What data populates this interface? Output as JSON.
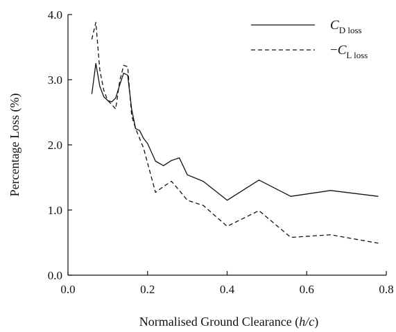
{
  "chart_data": {
    "type": "line",
    "xlabel": "Normalised Ground Clearance (h/c)",
    "xlabel_parts": {
      "pre": "Normalised Ground Clearance (",
      "var": "h/c",
      "post": ")"
    },
    "ylabel": "Percentage Loss (%)",
    "xlim": [
      0.0,
      0.8
    ],
    "ylim": [
      0.0,
      4.0
    ],
    "xticks": [
      0.0,
      0.2,
      0.4,
      0.6,
      0.8
    ],
    "xtick_labels": [
      "0.0",
      "0.2",
      "0.4",
      "0.6",
      "0.8"
    ],
    "yticks": [
      0.0,
      1.0,
      2.0,
      3.0,
      4.0
    ],
    "ytick_labels": [
      "0.0",
      "1.0",
      "2.0",
      "3.0",
      "4.0"
    ],
    "grid": false,
    "legend_position": "top-right",
    "series": [
      {
        "name": "C_D loss",
        "legend_main": "C",
        "legend_sub": "D loss",
        "legend_prefix": "",
        "style": "solid",
        "color": "#111111",
        "x": [
          0.06,
          0.07,
          0.08,
          0.09,
          0.1,
          0.11,
          0.12,
          0.13,
          0.14,
          0.15,
          0.16,
          0.17,
          0.18,
          0.19,
          0.2,
          0.22,
          0.24,
          0.26,
          0.28,
          0.3,
          0.34,
          0.4,
          0.48,
          0.56,
          0.66,
          0.78
        ],
        "y": [
          2.78,
          3.25,
          2.9,
          2.74,
          2.68,
          2.66,
          2.72,
          2.92,
          3.1,
          3.07,
          2.55,
          2.25,
          2.22,
          2.1,
          2.02,
          1.75,
          1.68,
          1.76,
          1.8,
          1.54,
          1.44,
          1.15,
          1.46,
          1.21,
          1.3,
          1.21
        ]
      },
      {
        "name": "-C_L loss",
        "legend_main": "C",
        "legend_sub": "L loss",
        "legend_prefix": "−",
        "style": "dashed",
        "color": "#111111",
        "x": [
          0.06,
          0.07,
          0.08,
          0.09,
          0.1,
          0.11,
          0.12,
          0.13,
          0.14,
          0.15,
          0.16,
          0.17,
          0.18,
          0.19,
          0.2,
          0.22,
          0.24,
          0.26,
          0.28,
          0.3,
          0.34,
          0.4,
          0.48,
          0.56,
          0.66,
          0.78
        ],
        "y": [
          3.62,
          3.88,
          3.15,
          2.84,
          2.68,
          2.62,
          2.55,
          2.98,
          3.22,
          3.2,
          2.45,
          2.25,
          2.1,
          1.95,
          1.72,
          1.27,
          1.36,
          1.44,
          1.3,
          1.15,
          1.07,
          0.75,
          0.99,
          0.58,
          0.62,
          0.49
        ]
      }
    ]
  }
}
